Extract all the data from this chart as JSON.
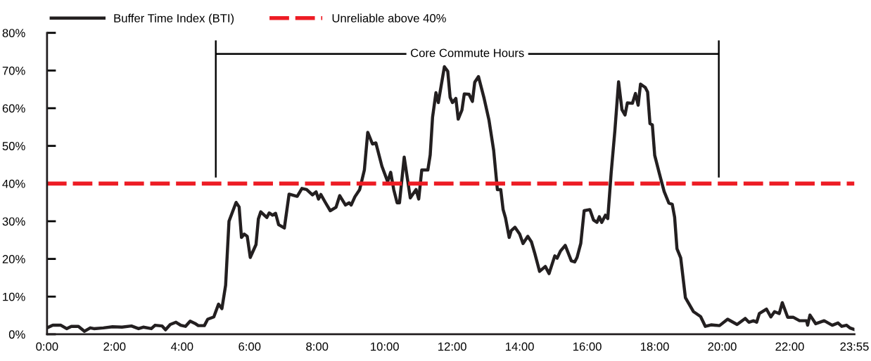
{
  "chart_data": {
    "type": "line",
    "x": [
      0.0,
      0.17,
      0.41,
      0.58,
      0.72,
      0.93,
      1.11,
      1.28,
      1.39,
      1.67,
      1.94,
      2.22,
      2.5,
      2.71,
      2.85,
      3.09,
      3.2,
      3.41,
      3.51,
      3.65,
      3.82,
      3.96,
      4.1,
      4.24,
      4.38,
      4.48,
      4.66,
      4.76,
      4.94,
      5.08,
      5.18,
      5.29,
      5.39,
      5.6,
      5.69,
      5.76,
      5.84,
      5.93,
      6.02,
      6.19,
      6.26,
      6.33,
      6.51,
      6.58,
      6.68,
      6.77,
      6.86,
      7.03,
      7.17,
      7.41,
      7.55,
      7.69,
      7.86,
      7.97,
      8.04,
      8.11,
      8.25,
      8.39,
      8.56,
      8.67,
      8.84,
      8.95,
      9.01,
      9.12,
      9.26,
      9.4,
      9.5,
      9.64,
      9.74,
      9.92,
      10.09,
      10.18,
      10.27,
      10.37,
      10.44,
      10.58,
      10.76,
      10.93,
      11.01,
      11.1,
      11.28,
      11.35,
      11.42,
      11.52,
      11.59,
      11.77,
      11.87,
      11.94,
      12.01,
      12.11,
      12.18,
      12.29,
      12.36,
      12.5,
      12.6,
      12.67,
      12.78,
      12.95,
      13.09,
      13.23,
      13.34,
      13.44,
      13.51,
      13.58,
      13.69,
      13.75,
      13.86,
      14.0,
      14.1,
      14.24,
      14.35,
      14.45,
      14.59,
      14.76,
      14.87,
      15.04,
      15.11,
      15.21,
      15.35,
      15.53,
      15.63,
      15.7,
      15.81,
      15.91,
      16.08,
      16.19,
      16.29,
      16.36,
      16.43,
      16.54,
      16.61,
      16.71,
      16.82,
      16.93,
      17.03,
      17.12,
      17.19,
      17.34,
      17.43,
      17.51,
      17.58,
      17.72,
      17.79,
      17.86,
      17.93,
      18.0,
      18.14,
      18.28,
      18.42,
      18.52,
      18.59,
      18.66,
      18.77,
      18.91,
      19.15,
      19.36,
      19.5,
      19.67,
      19.92,
      20.16,
      20.44,
      20.68,
      20.79,
      20.93,
      21.02,
      21.1,
      21.31,
      21.44,
      21.55,
      21.69,
      21.78,
      21.94,
      22.11,
      22.29,
      22.5,
      22.53,
      22.6,
      22.77,
      23.02,
      23.26,
      23.43,
      23.54,
      23.68,
      23.78,
      23.9
    ],
    "series": [
      {
        "name": "Buffer Time Index (BTI)",
        "color": "#231f20",
        "values": [
          1.7,
          2.4,
          2.4,
          1.5,
          2.1,
          2.1,
          0.8,
          1.7,
          1.5,
          1.7,
          2.0,
          1.9,
          2.2,
          1.5,
          1.9,
          1.5,
          2.4,
          2.2,
          1.2,
          2.6,
          3.2,
          2.4,
          2.1,
          3.5,
          2.9,
          2.3,
          2.3,
          4.0,
          4.6,
          8.0,
          6.8,
          13.0,
          30.0,
          35.0,
          33.8,
          25.7,
          26.6,
          26.0,
          20.4,
          23.8,
          30.6,
          32.5,
          31.0,
          32.2,
          31.6,
          32.1,
          29.1,
          28.2,
          37.2,
          36.6,
          38.7,
          38.4,
          37.0,
          37.8,
          35.9,
          37.1,
          34.9,
          32.8,
          33.7,
          36.8,
          34.3,
          34.9,
          34.3,
          36.5,
          38.4,
          43.6,
          53.6,
          50.5,
          50.8,
          44.6,
          40.5,
          43.0,
          38.4,
          34.9,
          34.9,
          47.0,
          36.2,
          38.4,
          35.9,
          43.6,
          43.6,
          47.6,
          57.6,
          64.1,
          61.5,
          71.0,
          69.8,
          62.9,
          61.5,
          62.6,
          57.1,
          59.5,
          63.8,
          63.7,
          61.8,
          66.9,
          68.4,
          62.5,
          56.9,
          48.8,
          38.4,
          38.4,
          33.1,
          30.9,
          25.7,
          27.5,
          28.4,
          26.6,
          24.1,
          26.0,
          24.5,
          21.4,
          16.7,
          18.0,
          16.1,
          20.8,
          20.2,
          22.1,
          23.6,
          19.5,
          19.2,
          20.4,
          24.1,
          32.8,
          33.1,
          30.3,
          29.7,
          31.2,
          29.7,
          31.6,
          30.7,
          42.8,
          54.0,
          67.0,
          59.6,
          58.2,
          61.4,
          61.3,
          63.9,
          60.8,
          66.4,
          65.5,
          64.3,
          55.9,
          55.6,
          47.5,
          42.6,
          37.9,
          34.8,
          34.5,
          31.1,
          22.7,
          20.3,
          9.7,
          6.0,
          4.7,
          2.1,
          2.5,
          2.3,
          4.0,
          2.6,
          4.2,
          3.2,
          3.6,
          3.2,
          5.5,
          6.7,
          4.6,
          6.0,
          5.5,
          8.4,
          4.5,
          4.5,
          3.6,
          3.6,
          2.4,
          5.1,
          2.8,
          3.6,
          2.4,
          3.0,
          2.1,
          2.4,
          1.7,
          1.3
        ]
      }
    ],
    "xlim": [
      0,
      23.917
    ],
    "xticks": [
      {
        "value": 0,
        "label": "0:00"
      },
      {
        "value": 2,
        "label": "2:00"
      },
      {
        "value": 4,
        "label": "4:00"
      },
      {
        "value": 6,
        "label": "6:00"
      },
      {
        "value": 8,
        "label": "8:00"
      },
      {
        "value": 10,
        "label": "10:00"
      },
      {
        "value": 12,
        "label": "12:00"
      },
      {
        "value": 14,
        "label": "14:00"
      },
      {
        "value": 16,
        "label": "16:00"
      },
      {
        "value": 18,
        "label": "18:00"
      },
      {
        "value": 20,
        "label": "20:00"
      },
      {
        "value": 22,
        "label": "22:00"
      },
      {
        "value": 23.917,
        "label": "23:55"
      }
    ],
    "ylim": [
      0,
      80
    ],
    "yticks": [
      {
        "value": 0,
        "label": "0%"
      },
      {
        "value": 10,
        "label": "10%"
      },
      {
        "value": 20,
        "label": "20%"
      },
      {
        "value": 30,
        "label": "30%"
      },
      {
        "value": 40,
        "label": "40%"
      },
      {
        "value": 50,
        "label": "50%"
      },
      {
        "value": 60,
        "label": "60%"
      },
      {
        "value": 70,
        "label": "70%"
      },
      {
        "value": 80,
        "label": "80%"
      }
    ],
    "ref_lines": [
      {
        "axis": "y",
        "value": 40,
        "label": "Unreliable above 40%",
        "color": "#ed1c24",
        "line_style": "dashed"
      }
    ],
    "annotations": [
      "Core Commute Hours"
    ],
    "grid": false,
    "legend": "top left",
    "marker": "none",
    "line_style": "solid"
  }
}
